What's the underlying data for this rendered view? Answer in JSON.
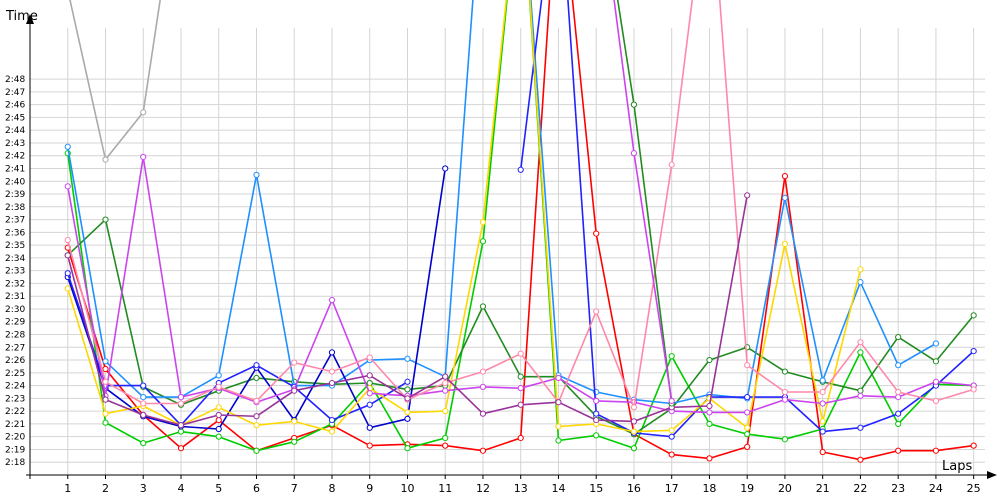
{
  "chart_data": {
    "type": "line",
    "xlabel": "Laps",
    "ylabel": "Time",
    "x": [
      1,
      2,
      3,
      4,
      5,
      6,
      7,
      8,
      9,
      10,
      11,
      12,
      13,
      14,
      15,
      16,
      17,
      18,
      19,
      20,
      21,
      22,
      23,
      24,
      25
    ],
    "xlim": [
      0,
      25.3
    ],
    "ylim_seconds": [
      137,
      172
    ],
    "y_ticks": [
      "2:18",
      "2:19",
      "2:20",
      "2:21",
      "2:22",
      "2:23",
      "2:24",
      "2:25",
      "2:26",
      "2:27",
      "2:28",
      "2:29",
      "2:30",
      "2:31",
      "2:32",
      "2:33",
      "2:34",
      "2:35",
      "2:36",
      "2:37",
      "2:38",
      "2:39",
      "2:40",
      "2:41",
      "2:42",
      "2:43",
      "2:44",
      "2:45",
      "2:46",
      "2:47",
      "2:48"
    ],
    "grid": true,
    "legend": "none",
    "value_unit": "seconds",
    "series": [
      {
        "color": "#aaaaaa",
        "values": [
          175,
          161.7,
          165.4,
          185,
          null,
          null,
          null,
          null,
          null,
          null,
          null,
          null,
          null,
          null,
          null,
          null,
          null,
          null,
          null,
          null,
          null,
          null,
          null,
          null,
          null
        ]
      },
      {
        "color": "#ff0000",
        "values": [
          154.8,
          145.3,
          141.7,
          139.1,
          141.3,
          138.9,
          139.9,
          140.9,
          139.3,
          139.4,
          139.3,
          138.9,
          139.9,
          185,
          155.9,
          140.2,
          138.6,
          138.3,
          139.2,
          160.4,
          138.8,
          138.2,
          138.9,
          138.9,
          139.3
        ]
      },
      {
        "color": "#00cc00",
        "values": [
          162.2,
          141.1,
          139.5,
          140.4,
          140.0,
          138.9,
          139.6,
          141.0,
          144.2,
          139.1,
          139.9,
          155.3,
          185,
          139.7,
          140.1,
          139.1,
          146.3,
          141.0,
          140.2,
          139.8,
          140.6,
          146.6,
          141.0,
          144.1,
          144.0
        ]
      },
      {
        "color": "#228b22",
        "values": [
          154.2,
          157.0,
          143.9,
          142.5,
          143.6,
          144.6,
          144.3,
          144.1,
          144.2,
          143.7,
          144.0,
          150.2,
          144.7,
          144.7,
          141.6,
          140.2,
          142.2,
          146.0,
          147.0,
          145.1,
          144.3,
          143.6,
          147.8,
          145.9,
          149.5
        ]
      },
      {
        "color": "#1e90ff",
        "values": [
          162.7,
          145.9,
          143.1,
          143.1,
          144.8,
          160.5,
          144.0,
          144.0,
          146.0,
          146.1,
          144.7,
          185,
          185,
          144.8,
          143.5,
          142.9,
          142.6,
          143.3,
          143.0,
          158.7,
          144.4,
          152.1,
          145.6,
          147.3,
          null
        ]
      },
      {
        "color": "#0000cd",
        "values": [
          152.5,
          143.8,
          141.6,
          140.8,
          140.6,
          145.4,
          141.3,
          146.6,
          140.7,
          141.4,
          161.0,
          null,
          null,
          null,
          null,
          null,
          null,
          null,
          null,
          null,
          null,
          null,
          null,
          null,
          null
        ]
      },
      {
        "color": "#2222ff",
        "values": [
          152.8,
          144.0,
          144.0,
          140.9,
          144.2,
          145.6,
          143.9,
          141.3,
          142.5,
          144.3,
          null,
          null,
          160.9,
          185,
          141.8,
          140.3,
          140.0,
          143.1,
          143.1,
          143.1,
          140.4,
          140.7,
          141.8,
          144.0,
          146.7
        ]
      },
      {
        "color": "#ffd700",
        "values": [
          151.6,
          141.8,
          142.4,
          140.9,
          142.3,
          140.9,
          141.2,
          140.4,
          143.8,
          141.9,
          142.0,
          156.8,
          185,
          140.8,
          141.0,
          140.4,
          140.5,
          143.0,
          140.7,
          155.1,
          141.2,
          153.1,
          null,
          null,
          null
        ]
      },
      {
        "color": "#cc44ee",
        "values": [
          159.6,
          143.2,
          161.9,
          143.1,
          143.8,
          142.7,
          143.7,
          150.7,
          143.4,
          143.2,
          143.6,
          143.9,
          143.8,
          144.6,
          142.8,
          142.7,
          142.0,
          141.9,
          141.9,
          142.9,
          142.6,
          143.2,
          143.1,
          144.3,
          144.0
        ]
      },
      {
        "color": "#ff88aa",
        "values": [
          155.4,
          144.3,
          142.6,
          142.6,
          143.9,
          142.8,
          145.8,
          145.1,
          146.2,
          142.9,
          144.2,
          145.1,
          146.5,
          142.7,
          149.8,
          142.3,
          161.3,
          185,
          145.6,
          143.5,
          143.5,
          147.4,
          143.5,
          142.8,
          143.7
        ]
      },
      {
        "color": "#993399",
        "values": [
          154.2,
          142.9,
          141.7,
          140.9,
          141.7,
          141.6,
          143.6,
          144.2,
          144.8,
          143.0,
          144.7,
          141.8,
          142.5,
          142.7,
          141.3,
          141.2,
          142.3,
          142.4,
          158.9,
          null,
          null,
          null,
          null,
          null,
          null
        ]
      },
      {
        "color": "#228b22",
        "values": [
          null,
          null,
          null,
          null,
          null,
          null,
          null,
          null,
          null,
          null,
          null,
          null,
          null,
          null,
          185,
          166.0,
          142.6,
          null,
          null,
          null,
          null,
          null,
          null,
          null,
          null
        ]
      },
      {
        "color": "#cc44ee",
        "values": [
          null,
          null,
          null,
          null,
          null,
          null,
          null,
          null,
          null,
          null,
          null,
          null,
          null,
          null,
          185,
          162.2,
          142.8,
          null,
          null,
          null,
          null,
          null,
          null,
          null,
          null
        ]
      }
    ]
  }
}
